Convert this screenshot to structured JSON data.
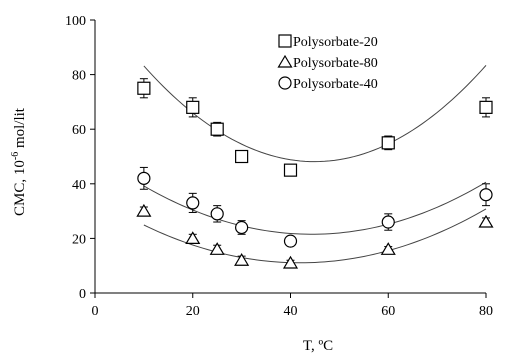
{
  "chart_data": {
    "type": "scatter",
    "xlabel": "T, ºC",
    "ylabel_prefix": "CMC, 10",
    "ylabel_exponent": "-6",
    "ylabel_suffix": " mol/lit",
    "xlim": [
      0,
      80
    ],
    "ylim": [
      0,
      100
    ],
    "xticks": [
      0,
      20,
      40,
      60,
      80
    ],
    "yticks": [
      0,
      20,
      40,
      60,
      80,
      100
    ],
    "grid": false,
    "legend_position": "top-center",
    "series": [
      {
        "name": "Polysorbate-20",
        "marker": "square",
        "x": [
          10,
          20,
          25,
          30,
          40,
          60,
          80
        ],
        "y": [
          75,
          68,
          60,
          50,
          45,
          55,
          68
        ],
        "err": [
          3.5,
          3.5,
          2.5,
          2,
          2,
          2.5,
          3.5
        ],
        "fit": [
          0.0287,
          -2.58,
          106.1
        ]
      },
      {
        "name": "Polysorbate-80",
        "marker": "triangle",
        "x": [
          10,
          20,
          25,
          30,
          40,
          60,
          80
        ],
        "y": [
          30,
          20,
          16,
          12,
          11,
          16,
          26
        ],
        "err": [
          1.5,
          1.5,
          1.5,
          1.5,
          1,
          1,
          1.5
        ],
        "fit": [
          0.0136,
          -1.14,
          34.95
        ]
      },
      {
        "name": "Polysorbate-40",
        "marker": "circle",
        "x": [
          10,
          20,
          25,
          30,
          40,
          60,
          80
        ],
        "y": [
          42,
          33,
          29,
          24,
          19,
          26,
          36
        ],
        "err": [
          4,
          3.5,
          3,
          2.5,
          1.5,
          3,
          4
        ],
        "fit": [
          0.015,
          -1.33,
          51.0
        ]
      }
    ]
  }
}
